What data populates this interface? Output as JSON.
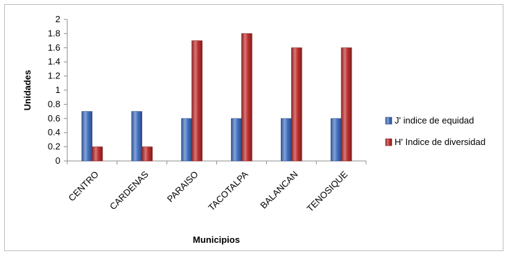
{
  "chart_data": {
    "type": "bar",
    "title": "",
    "xlabel": "Municipios",
    "ylabel": "Unidades",
    "ylim": [
      0,
      2
    ],
    "ytick_step": 0.2,
    "yticks": [
      "0",
      "0.2",
      "0.4",
      "0.6",
      "0.8",
      "1",
      "1.2",
      "1.4",
      "1.6",
      "1.8",
      "2"
    ],
    "categories": [
      "CENTRO",
      "CARDENAS",
      "PARAISO",
      "TACOTALPA",
      "BALANCAN",
      "TENOSIQUE"
    ],
    "series": [
      {
        "name": "J' indice de equidad",
        "color": "#4472c4",
        "values": [
          0.7,
          0.7,
          0.6,
          0.6,
          0.6,
          0.6
        ]
      },
      {
        "name": "H' Indice de diversidad",
        "color": "#c0302f",
        "values": [
          0.2,
          0.2,
          1.7,
          1.8,
          1.6,
          1.6
        ]
      }
    ],
    "grid": false,
    "legend_position": "right"
  }
}
